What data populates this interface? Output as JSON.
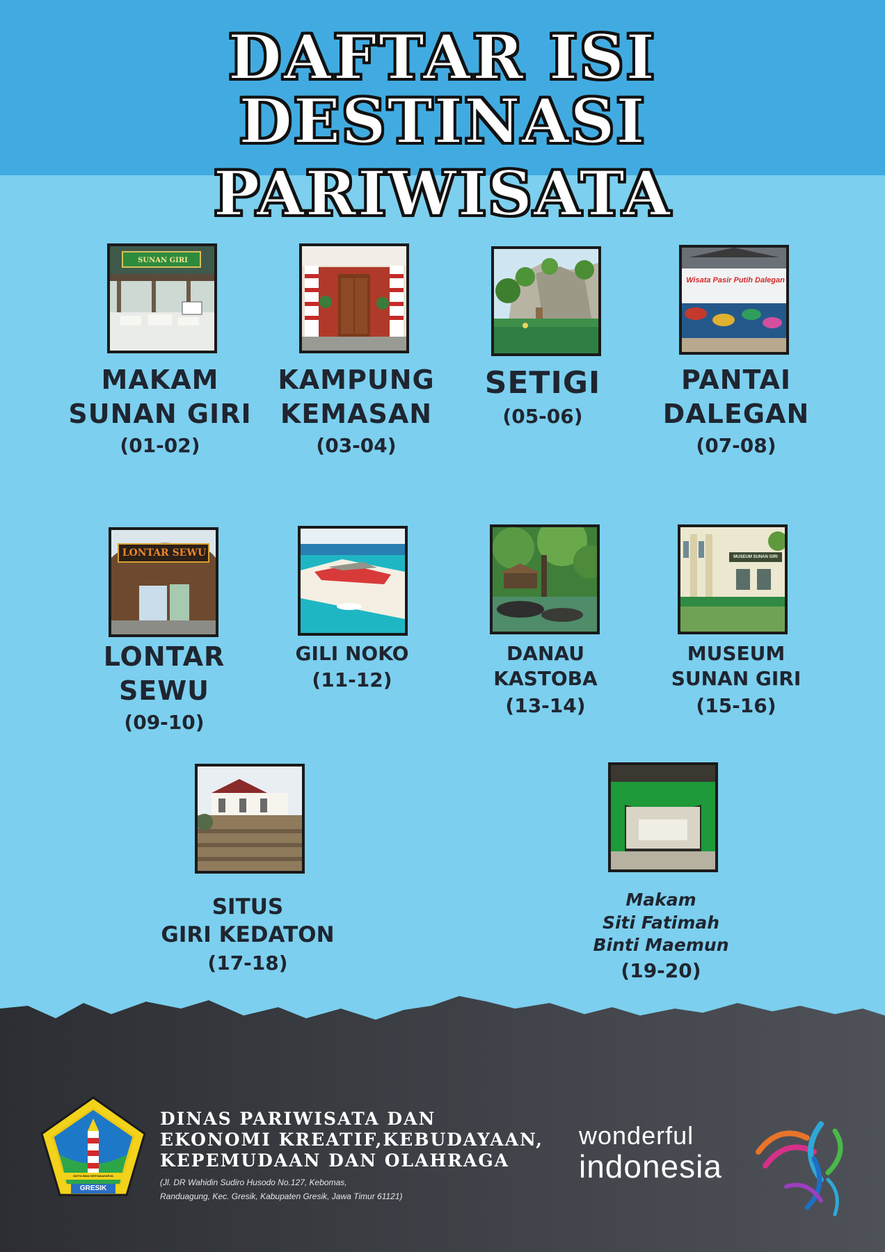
{
  "header": {
    "title_line1": "DAFTAR ISI",
    "title_line2": "DESTINASI PARIWISATA"
  },
  "destinations": [
    {
      "name_lines": [
        "MAKAM",
        "SUNAN GIRI"
      ],
      "pages": "(01-02)",
      "photo_sign": "SUNAN GIRI"
    },
    {
      "name_lines": [
        "KAMPUNG",
        "KEMASAN"
      ],
      "pages": "(03-04)"
    },
    {
      "name_lines": [
        "SETIGI"
      ],
      "pages": "(05-06)"
    },
    {
      "name_lines": [
        "PANTAI",
        "DALEGAN"
      ],
      "pages": "(07-08)",
      "photo_sign": "Wisata Pasir Putih Dalegan"
    },
    {
      "name_lines": [
        "LONTAR",
        "SEWU"
      ],
      "pages": "(09-10)",
      "photo_sign": "LONTAR SEWU"
    },
    {
      "name_lines": [
        "GILI NOKO"
      ],
      "pages": "(11-12)"
    },
    {
      "name_lines": [
        "DANAU",
        "KASTOBA"
      ],
      "pages": "(13-14)"
    },
    {
      "name_lines": [
        "MUSEUM",
        "SUNAN GIRI"
      ],
      "pages": "(15-16)",
      "photo_sign": "MUSEUM SUNAN GIRI"
    },
    {
      "name_lines": [
        "SITUS",
        "GIRI KEDATON"
      ],
      "pages": "(17-18)"
    },
    {
      "name_lines": [
        "Makam",
        "Siti Fatimah",
        "Binti Maemun"
      ],
      "pages": "(19-20)"
    }
  ],
  "footer": {
    "org_line1": "DINAS PARIWISATA DAN",
    "org_line2": "EKONOMI KREATIF,KEBUDAYAAN,",
    "org_line3": "KEPEMUDAAN DAN OLAHRAGA",
    "address_line1": "(Jl. DR Wahidin Sudiro Husodo No.127, Kebomas,",
    "address_line2": "Randuagung, Kec. Gresik, Kabupaten Gresik, Jawa Timur 61121)",
    "logo_motto": "SATYA BINA KERTANAHARJA",
    "logo_label": "GRESIK",
    "brand_word1": "wonderful",
    "brand_word2": "indonesia"
  },
  "colors": {
    "header_bg": "#41abe1",
    "body_bg": "#7ccfee",
    "footer_bg": "#3a3d42",
    "text_dark": "#1f2530"
  }
}
